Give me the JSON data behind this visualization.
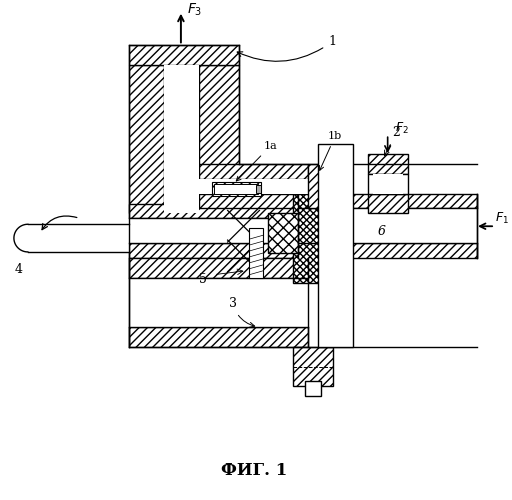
{
  "title": "ФИГ. 1",
  "bg_color": "#ffffff",
  "line_color": "#000000",
  "figsize": [
    5.12,
    5.0
  ],
  "dpi": 100
}
